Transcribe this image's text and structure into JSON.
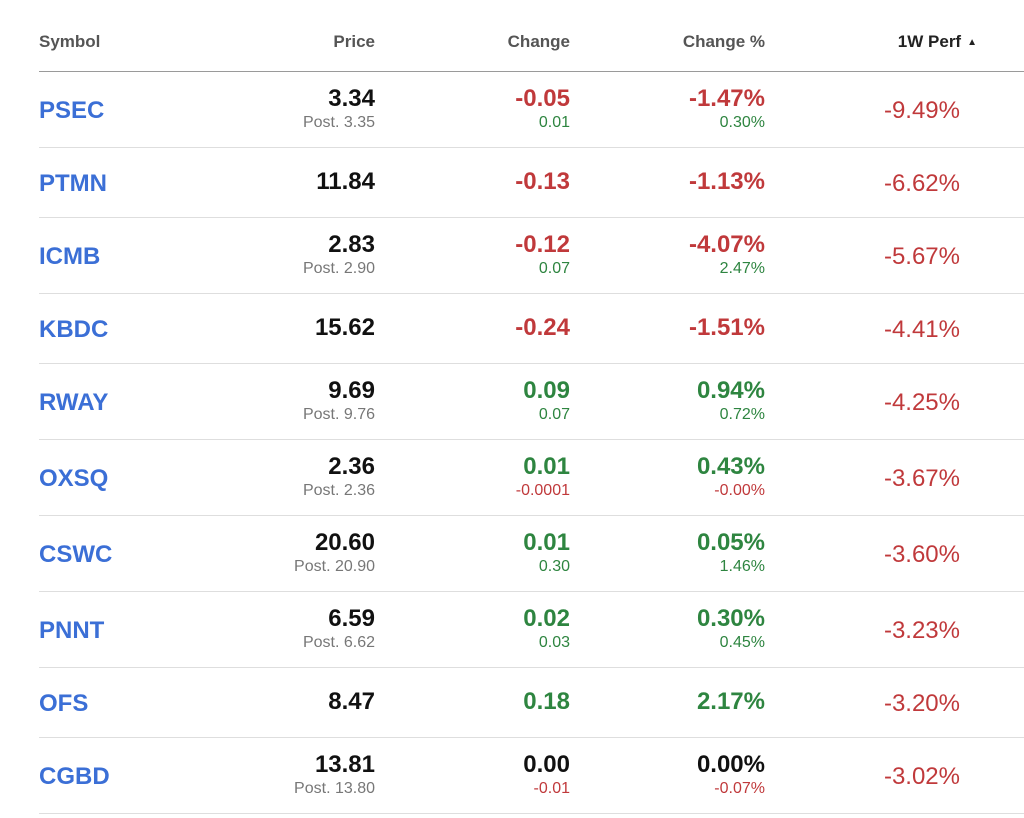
{
  "colors": {
    "symbol_link": "#3b6fd6",
    "negative": "#c0393b",
    "positive": "#2e8540",
    "neutral": "#111111"
  },
  "header": {
    "symbol": "Symbol",
    "price": "Price",
    "change": "Change",
    "change_pct": "Change %",
    "perf": "1W Perf",
    "sort_icon": "sort-ascending-icon",
    "sort_glyph": "▲"
  },
  "rows": [
    {
      "symbol": "PSEC",
      "price": "3.34",
      "post": "Post. 3.35",
      "change": "-0.05",
      "change_sub": "0.01",
      "change_pct": "-1.47%",
      "change_pct_sub": "0.30%",
      "perf": "-9.49%"
    },
    {
      "symbol": "PTMN",
      "price": "11.84",
      "post": "",
      "change": "-0.13",
      "change_sub": "",
      "change_pct": "-1.13%",
      "change_pct_sub": "",
      "perf": "-6.62%"
    },
    {
      "symbol": "ICMB",
      "price": "2.83",
      "post": "Post. 2.90",
      "change": "-0.12",
      "change_sub": "0.07",
      "change_pct": "-4.07%",
      "change_pct_sub": "2.47%",
      "perf": "-5.67%"
    },
    {
      "symbol": "KBDC",
      "price": "15.62",
      "post": "",
      "change": "-0.24",
      "change_sub": "",
      "change_pct": "-1.51%",
      "change_pct_sub": "",
      "perf": "-4.41%"
    },
    {
      "symbol": "RWAY",
      "price": "9.69",
      "post": "Post. 9.76",
      "change": "0.09",
      "change_sub": "0.07",
      "change_pct": "0.94%",
      "change_pct_sub": "0.72%",
      "perf": "-4.25%"
    },
    {
      "symbol": "OXSQ",
      "price": "2.36",
      "post": "Post. 2.36",
      "change": "0.01",
      "change_sub": "-0.0001",
      "change_pct": "0.43%",
      "change_pct_sub": "-0.00%",
      "perf": "-3.67%"
    },
    {
      "symbol": "CSWC",
      "price": "20.60",
      "post": "Post. 20.90",
      "change": "0.01",
      "change_sub": "0.30",
      "change_pct": "0.05%",
      "change_pct_sub": "1.46%",
      "perf": "-3.60%"
    },
    {
      "symbol": "PNNT",
      "price": "6.59",
      "post": "Post. 6.62",
      "change": "0.02",
      "change_sub": "0.03",
      "change_pct": "0.30%",
      "change_pct_sub": "0.45%",
      "perf": "-3.23%"
    },
    {
      "symbol": "OFS",
      "price": "8.47",
      "post": "",
      "change": "0.18",
      "change_sub": "",
      "change_pct": "2.17%",
      "change_pct_sub": "",
      "perf": "-3.20%"
    },
    {
      "symbol": "CGBD",
      "price": "13.81",
      "post": "Post. 13.80",
      "change": "0.00",
      "change_sub": "-0.01",
      "change_pct": "0.00%",
      "change_pct_sub": "-0.07%",
      "perf": "-3.02%"
    }
  ]
}
